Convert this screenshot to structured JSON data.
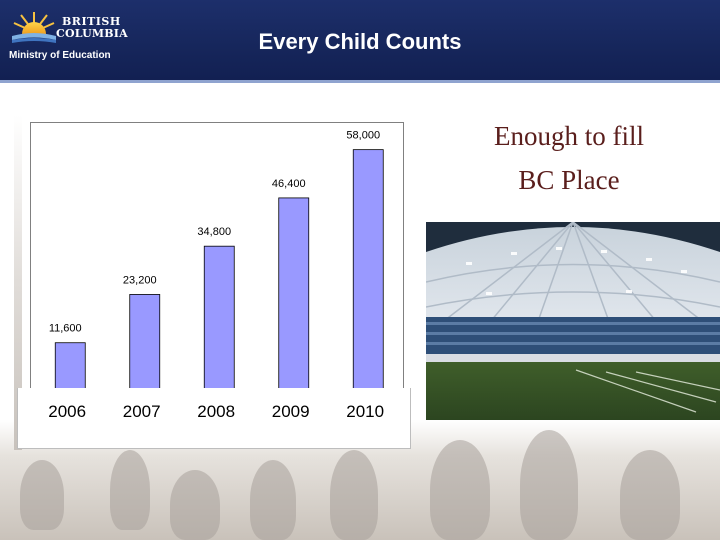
{
  "header": {
    "title": "Every Child Counts",
    "logo_line1": "BRITISH",
    "logo_line2": "COLUMBIA",
    "ministry": "Ministry of Education"
  },
  "side_text": {
    "line1": "Enough to fill",
    "line2": "BC Place"
  },
  "colors": {
    "header_bg": "#16265b",
    "bar_fill": "#9999ff",
    "side_text": "#5a1e1c"
  },
  "chart_data": {
    "type": "bar",
    "categories": [
      "2006",
      "2007",
      "2008",
      "2009",
      "2010"
    ],
    "values": [
      11600,
      23200,
      34800,
      46400,
      58000
    ],
    "value_labels": [
      "11,600",
      "23,200",
      "34,800",
      "46,400",
      "58,000"
    ],
    "title": "",
    "xlabel": "",
    "ylabel": "",
    "ylim": [
      0,
      62000
    ],
    "grid": false
  }
}
